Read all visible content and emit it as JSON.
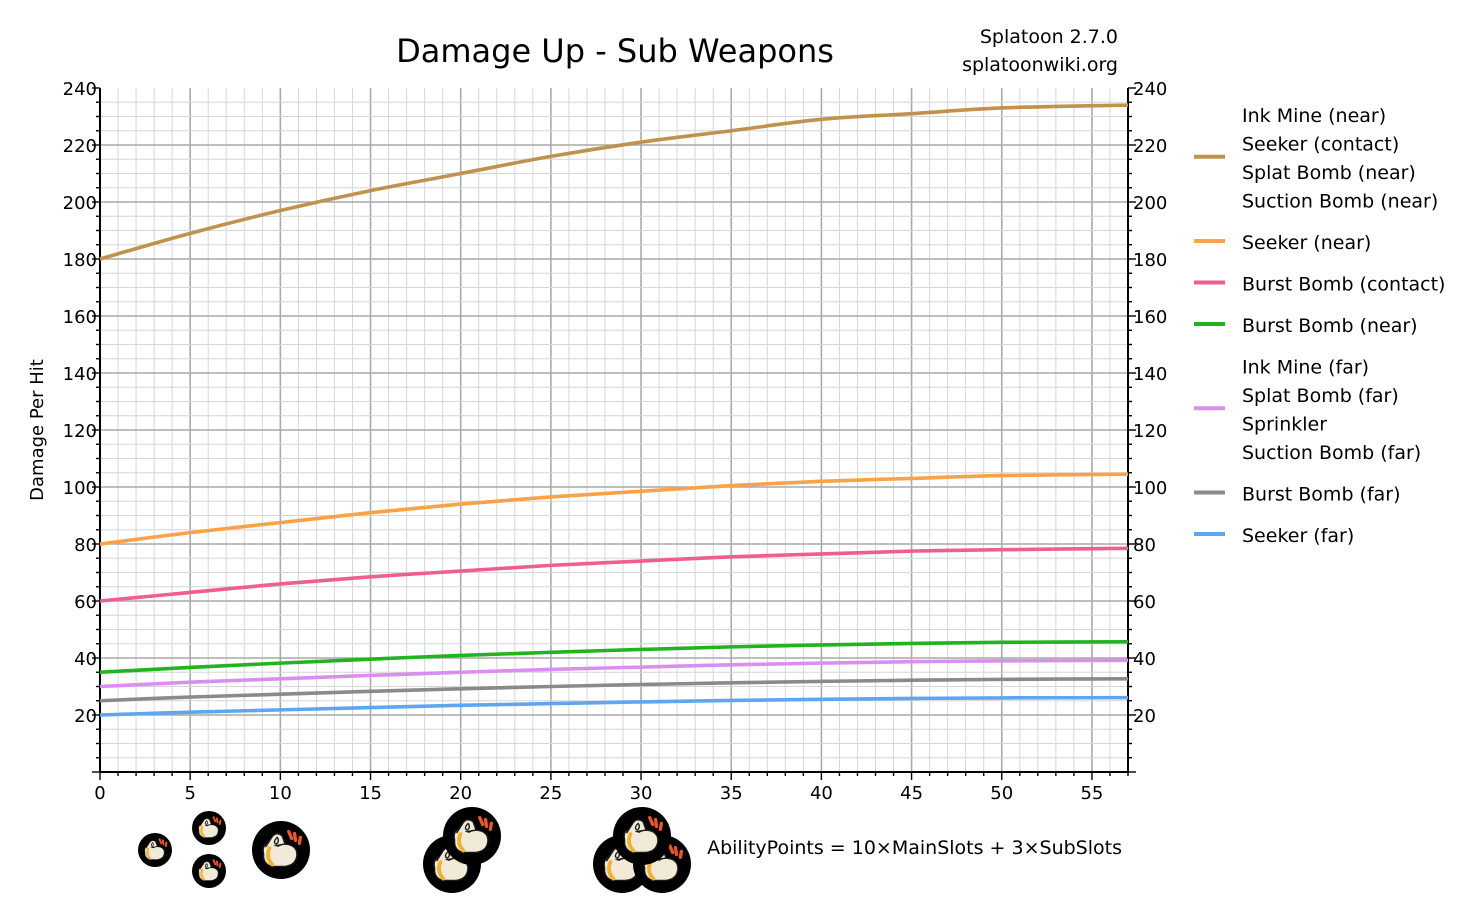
{
  "chart_data": {
    "type": "line",
    "title": "Damage Up - Sub Weapons",
    "source_version": "Splatoon 2.7.0",
    "source_site": "splatoonwiki.org",
    "ylabel": "Damage Per Hit",
    "xlabel": "",
    "formula": "AbilityPoints = 10×MainSlots + 3×SubSlots",
    "xlim": [
      0,
      57
    ],
    "ylim": [
      0,
      240
    ],
    "x_ticks": [
      0,
      5,
      10,
      15,
      20,
      25,
      30,
      35,
      40,
      45,
      50,
      55
    ],
    "y_ticks": [
      20,
      40,
      60,
      80,
      100,
      120,
      140,
      160,
      180,
      200,
      220,
      240
    ],
    "grid": true,
    "legend_position": "right",
    "x": [
      0,
      5,
      10,
      15,
      20,
      25,
      30,
      35,
      40,
      45,
      50,
      57
    ],
    "series": [
      {
        "labels": [
          "Ink Mine (near)",
          "Seeker (contact)",
          "Splat Bomb (near)",
          "Suction Bomb (near)"
        ],
        "color": "#c0914f",
        "values": [
          180,
          189,
          197,
          204,
          210,
          216,
          221,
          225,
          229,
          231,
          233,
          234
        ]
      },
      {
        "labels": [
          "Seeker (near)"
        ],
        "color": "#f9a247",
        "values": [
          80,
          84,
          87.5,
          91,
          94,
          96.5,
          98.5,
          100.5,
          102,
          103,
          104,
          104.5
        ]
      },
      {
        "labels": [
          "Burst Bomb (contact)"
        ],
        "color": "#ee5f90",
        "values": [
          60,
          63,
          66,
          68.5,
          70.5,
          72.5,
          74,
          75.5,
          76.5,
          77.5,
          78,
          78.5
        ]
      },
      {
        "labels": [
          "Burst Bomb (near)"
        ],
        "color": "#22b41e",
        "values": [
          35,
          36.7,
          38.2,
          39.6,
          40.9,
          42,
          43,
          43.9,
          44.6,
          45.1,
          45.5,
          45.7
        ]
      },
      {
        "labels": [
          "Ink Mine (far)",
          "Splat Bomb (far)",
          "Sprinkler",
          "Suction Bomb (far)"
        ],
        "color": "#d98ef0",
        "values": [
          30,
          31.5,
          32.7,
          33.9,
          35,
          36,
          36.8,
          37.6,
          38.2,
          38.7,
          39,
          39.2
        ]
      },
      {
        "labels": [
          "Burst Bomb (far)"
        ],
        "color": "#8a8a8a",
        "values": [
          25,
          26.3,
          27.3,
          28.3,
          29.2,
          30,
          30.7,
          31.3,
          31.8,
          32.2,
          32.5,
          32.7
        ]
      },
      {
        "labels": [
          "Seeker (far)"
        ],
        "color": "#5fa5f0",
        "values": [
          20,
          21,
          21.8,
          22.6,
          23.4,
          24,
          24.6,
          25.1,
          25.5,
          25.8,
          26,
          26.1
        ]
      }
    ],
    "slot_icons": {
      "icon": "damage-up-ability-icon",
      "background": "#000000",
      "fist": "#f2ead8",
      "accent": "#f2b233",
      "sparks": "#e8572a"
    }
  }
}
